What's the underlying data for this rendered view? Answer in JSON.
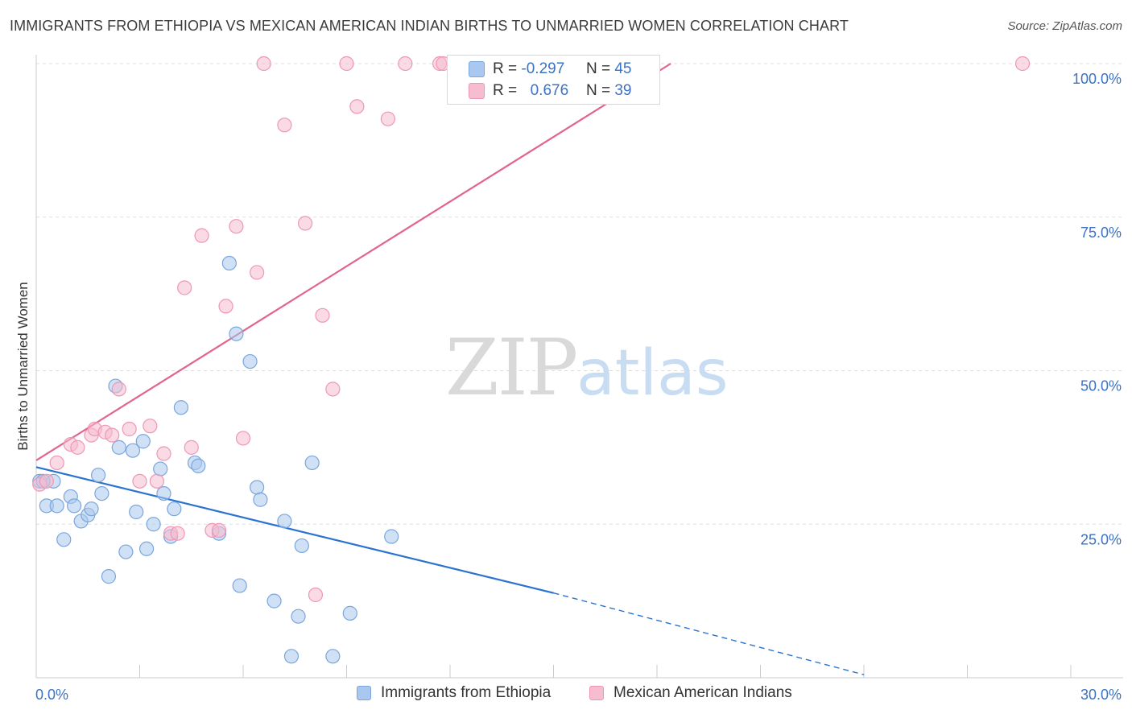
{
  "title": "IMMIGRANTS FROM ETHIOPIA VS MEXICAN AMERICAN INDIAN BIRTHS TO UNMARRIED WOMEN CORRELATION CHART",
  "source": "Source: ZipAtlas.com",
  "watermark": {
    "zip": "ZIP",
    "atlas": "atlas"
  },
  "colors": {
    "blue_fill": "#aac8ef",
    "blue_stroke": "#7aa6dd",
    "blue_line": "#2a72d0",
    "pink_fill": "#f6bcd0",
    "pink_stroke": "#ee97b4",
    "pink_line": "#e2638e",
    "axis_text": "#3b72c4",
    "grid": "#dddddd"
  },
  "legend": [
    {
      "name": "Immigrants from Ethiopia",
      "color": "blue"
    },
    {
      "name": "Mexican American Indians",
      "color": "pink"
    }
  ],
  "stats": [
    {
      "r_label": "R =",
      "r_value": "-0.297",
      "n_label": "N =",
      "n_value": "45",
      "color": "blue"
    },
    {
      "r_label": "R =",
      "r_value": "0.676",
      "n_label": "N =",
      "n_value": "39",
      "color": "pink"
    }
  ],
  "chart_data": {
    "type": "scatter",
    "title": "IMMIGRANTS FROM ETHIOPIA VS MEXICAN AMERICAN INDIAN BIRTHS TO UNMARRIED WOMEN CORRELATION CHART",
    "xlabel": "",
    "ylabel": "Births to Unmarried Women",
    "xlim": [
      0,
      30
    ],
    "ylim": [
      0,
      100
    ],
    "x_tick_labels": [
      "0.0%",
      "30.0%"
    ],
    "y_ticks": [
      25,
      50,
      75,
      100
    ],
    "y_tick_labels": [
      "25.0%",
      "50.0%",
      "75.0%",
      "100.0%"
    ],
    "grid": true,
    "series": [
      {
        "name": "Immigrants from Ethiopia",
        "color": "blue",
        "points": [
          [
            0.1,
            32.0
          ],
          [
            0.3,
            28.0
          ],
          [
            0.5,
            32.0
          ],
          [
            0.6,
            28.0
          ],
          [
            0.8,
            22.5
          ],
          [
            1.0,
            29.5
          ],
          [
            1.1,
            28.0
          ],
          [
            1.3,
            25.5
          ],
          [
            1.5,
            26.5
          ],
          [
            1.6,
            27.5
          ],
          [
            1.8,
            33.0
          ],
          [
            1.9,
            30.0
          ],
          [
            2.1,
            16.5
          ],
          [
            2.3,
            47.5
          ],
          [
            2.4,
            37.5
          ],
          [
            2.6,
            20.5
          ],
          [
            2.8,
            37.0
          ],
          [
            2.9,
            27.0
          ],
          [
            3.1,
            38.5
          ],
          [
            3.2,
            21.0
          ],
          [
            3.4,
            25.0
          ],
          [
            3.6,
            34.0
          ],
          [
            3.7,
            30.0
          ],
          [
            3.9,
            23.0
          ],
          [
            4.0,
            27.5
          ],
          [
            4.2,
            44.0
          ],
          [
            4.6,
            35.0
          ],
          [
            4.7,
            34.5
          ],
          [
            5.3,
            23.5
          ],
          [
            5.6,
            67.5
          ],
          [
            5.8,
            56.0
          ],
          [
            5.9,
            15.0
          ],
          [
            6.2,
            51.5
          ],
          [
            6.4,
            31.0
          ],
          [
            6.5,
            29.0
          ],
          [
            6.9,
            12.5
          ],
          [
            7.2,
            25.5
          ],
          [
            7.4,
            3.5
          ],
          [
            7.6,
            10.0
          ],
          [
            7.7,
            21.5
          ],
          [
            8.0,
            35.0
          ],
          [
            8.6,
            3.5
          ],
          [
            9.1,
            10.5
          ],
          [
            10.3,
            23.0
          ],
          [
            0.2,
            32.0
          ]
        ],
        "trend": {
          "x0": 0,
          "y0": 34.3,
          "x1": 15,
          "y1": 13.8,
          "dash_to_x": 24,
          "dash_to_y": 0.5
        }
      },
      {
        "name": "Mexican American Indians",
        "color": "pink",
        "points": [
          [
            0.1,
            31.5
          ],
          [
            0.6,
            35.0
          ],
          [
            1.0,
            38.0
          ],
          [
            1.2,
            37.5
          ],
          [
            1.6,
            39.5
          ],
          [
            1.7,
            40.5
          ],
          [
            2.0,
            40.0
          ],
          [
            2.2,
            39.5
          ],
          [
            2.4,
            47.0
          ],
          [
            2.7,
            40.5
          ],
          [
            3.0,
            32.0
          ],
          [
            3.3,
            41.0
          ],
          [
            3.5,
            32.0
          ],
          [
            3.7,
            36.5
          ],
          [
            3.9,
            23.5
          ],
          [
            4.1,
            23.5
          ],
          [
            4.3,
            63.5
          ],
          [
            4.5,
            37.5
          ],
          [
            4.8,
            72.0
          ],
          [
            5.1,
            24.0
          ],
          [
            5.3,
            24.0
          ],
          [
            5.5,
            60.5
          ],
          [
            5.8,
            73.5
          ],
          [
            6.0,
            39.0
          ],
          [
            6.4,
            66.0
          ],
          [
            6.6,
            100.0
          ],
          [
            7.2,
            90.0
          ],
          [
            7.8,
            74.0
          ],
          [
            8.1,
            13.5
          ],
          [
            8.3,
            59.0
          ],
          [
            8.6,
            47.0
          ],
          [
            9.0,
            100.0
          ],
          [
            9.3,
            93.0
          ],
          [
            10.2,
            91.0
          ],
          [
            10.7,
            100.0
          ],
          [
            11.7,
            100.0
          ],
          [
            11.8,
            100.0
          ],
          [
            28.6,
            100.0
          ],
          [
            0.3,
            32.0
          ]
        ],
        "trend": {
          "x0": 0,
          "y0": 35.4,
          "x1": 18.4,
          "y1": 100.0
        }
      }
    ]
  }
}
